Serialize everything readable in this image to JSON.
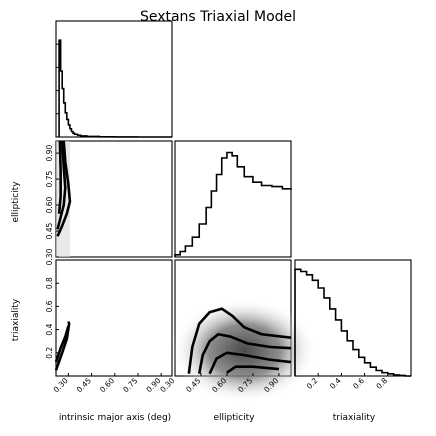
{
  "chart_data": {
    "type": "corner",
    "title": "Sextans Triaxial Model",
    "variables": [
      "intrinsic major axis (deg)",
      "ellipticity",
      "triaxiality"
    ],
    "ranges": {
      "major": [
        0.22,
        0.97
      ],
      "ellipticity": [
        0.3,
        0.97
      ],
      "triaxiality": [
        0.0,
        1.0
      ]
    },
    "ticks": {
      "major": [
        0.3,
        0.45,
        0.6,
        0.75,
        0.9
      ],
      "ellipticity": [
        0.3,
        0.45,
        0.6,
        0.75,
        0.9
      ],
      "triaxiality": [
        0.2,
        0.4,
        0.6,
        0.8
      ]
    },
    "histograms": {
      "major": {
        "x": [
          0.24,
          0.25,
          0.26,
          0.27,
          0.28,
          0.29,
          0.3,
          0.31,
          0.32,
          0.33,
          0.34,
          0.36,
          0.38,
          0.42,
          0.5,
          0.6,
          0.75,
          0.9,
          0.97
        ],
        "y": [
          0.88,
          0.6,
          0.44,
          0.31,
          0.22,
          0.16,
          0.11,
          0.075,
          0.05,
          0.035,
          0.025,
          0.015,
          0.01,
          0.005,
          0.002,
          0.001,
          0.0,
          0.0,
          0.0
        ]
      },
      "ellipticity": {
        "x": [
          0.3,
          0.33,
          0.36,
          0.4,
          0.44,
          0.48,
          0.51,
          0.54,
          0.57,
          0.6,
          0.63,
          0.66,
          0.7,
          0.75,
          0.8,
          0.86,
          0.92,
          0.97
        ],
        "y": [
          0.02,
          0.05,
          0.1,
          0.18,
          0.3,
          0.45,
          0.6,
          0.75,
          0.9,
          0.95,
          0.92,
          0.82,
          0.73,
          0.68,
          0.65,
          0.64,
          0.62,
          0.61
        ]
      },
      "triaxiality": {
        "x": [
          0.0,
          0.05,
          0.1,
          0.15,
          0.2,
          0.25,
          0.3,
          0.35,
          0.4,
          0.45,
          0.5,
          0.55,
          0.6,
          0.65,
          0.7,
          0.75,
          0.8,
          0.85,
          0.9,
          0.95,
          1.0
        ],
        "y": [
          0.97,
          0.95,
          0.92,
          0.87,
          0.8,
          0.71,
          0.61,
          0.51,
          0.41,
          0.32,
          0.24,
          0.17,
          0.12,
          0.08,
          0.05,
          0.03,
          0.02,
          0.01,
          0.005,
          0.0,
          0.0
        ]
      }
    },
    "contours": {
      "ellipticity_vs_major": [
        [
          [
            0.23,
            0.42
          ],
          [
            0.26,
            0.48
          ],
          [
            0.29,
            0.55
          ],
          [
            0.31,
            0.62
          ],
          [
            0.3,
            0.72
          ],
          [
            0.28,
            0.85
          ],
          [
            0.27,
            0.97
          ]
        ],
        [
          [
            0.23,
            0.46
          ],
          [
            0.25,
            0.53
          ],
          [
            0.27,
            0.6
          ],
          [
            0.28,
            0.7
          ],
          [
            0.27,
            0.82
          ],
          [
            0.26,
            0.97
          ]
        ],
        [
          [
            0.24,
            0.55
          ],
          [
            0.25,
            0.65
          ],
          [
            0.25,
            0.8
          ],
          [
            0.245,
            0.97
          ]
        ]
      ],
      "triaxiality_vs_major": [
        [
          [
            0.22,
            0.05
          ],
          [
            0.26,
            0.2
          ],
          [
            0.29,
            0.32
          ],
          [
            0.305,
            0.45
          ],
          [
            0.3,
            0.47
          ]
        ],
        [
          [
            0.22,
            0.12
          ],
          [
            0.25,
            0.24
          ],
          [
            0.28,
            0.34
          ],
          [
            0.3,
            0.43
          ]
        ]
      ],
      "triaxiality_vs_ellipticity": [
        [
          [
            0.38,
            0.02
          ],
          [
            0.4,
            0.25
          ],
          [
            0.44,
            0.45
          ],
          [
            0.5,
            0.55
          ],
          [
            0.57,
            0.58
          ],
          [
            0.63,
            0.52
          ],
          [
            0.7,
            0.42
          ],
          [
            0.8,
            0.36
          ],
          [
            0.97,
            0.33
          ]
        ],
        [
          [
            0.44,
            0.02
          ],
          [
            0.46,
            0.18
          ],
          [
            0.5,
            0.3
          ],
          [
            0.55,
            0.36
          ],
          [
            0.62,
            0.34
          ],
          [
            0.72,
            0.28
          ],
          [
            0.85,
            0.25
          ],
          [
            0.97,
            0.24
          ]
        ],
        [
          [
            0.5,
            0.02
          ],
          [
            0.54,
            0.15
          ],
          [
            0.6,
            0.2
          ],
          [
            0.7,
            0.18
          ],
          [
            0.85,
            0.14
          ],
          [
            0.97,
            0.12
          ]
        ],
        [
          [
            0.6,
            0.03
          ],
          [
            0.65,
            0.08
          ],
          [
            0.75,
            0.08
          ],
          [
            0.9,
            0.06
          ]
        ]
      ]
    }
  }
}
